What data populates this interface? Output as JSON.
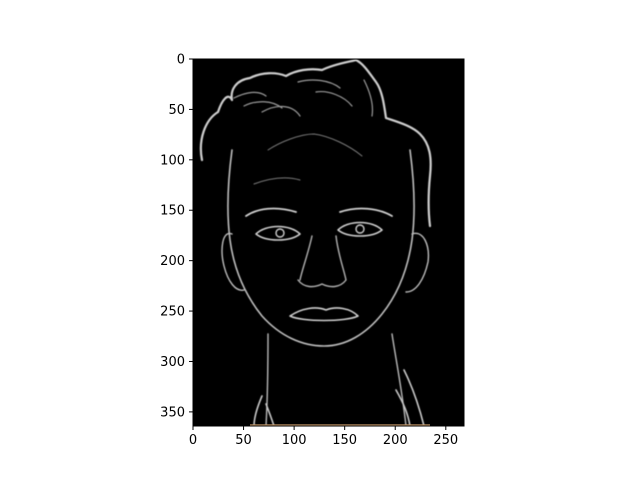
{
  "image": {
    "description_icon": "edge-detected-face-image",
    "background_color": "#000000",
    "edge_color": "#d8d8d8"
  },
  "axes": {
    "x_ticks": [
      "0",
      "50",
      "100",
      "150",
      "200",
      "250"
    ],
    "y_ticks": [
      "0",
      "50",
      "100",
      "150",
      "200",
      "250",
      "300",
      "350"
    ],
    "xlim": [
      0,
      268
    ],
    "ylim": [
      364,
      0
    ]
  }
}
